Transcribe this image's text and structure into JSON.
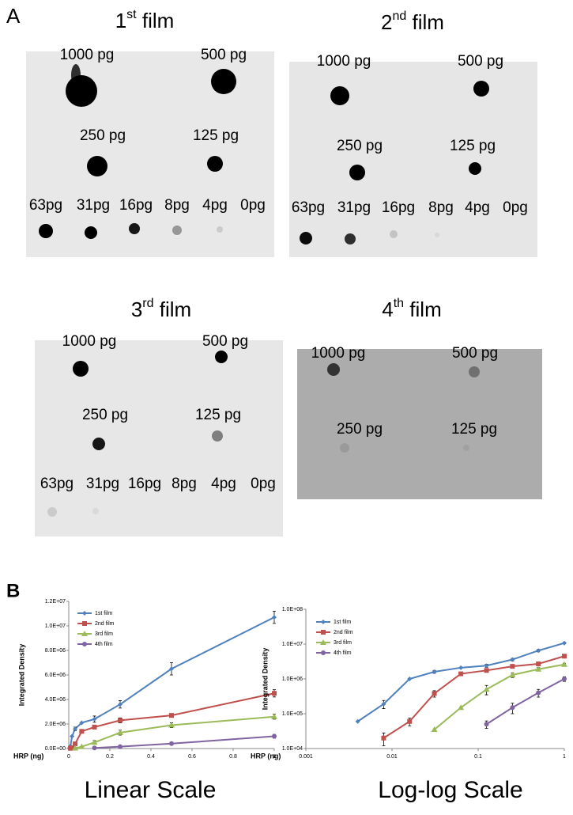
{
  "panel_a": "A",
  "panel_b": "B",
  "films": [
    {
      "ordinal": "1",
      "suffix": "st",
      "word": "film",
      "doses": [
        "1000 pg",
        "500 pg",
        "250 pg",
        "125 pg"
      ],
      "row": [
        "63pg",
        "31pg",
        "16pg",
        "8pg",
        "4pg",
        "0pg"
      ]
    },
    {
      "ordinal": "2",
      "suffix": "nd",
      "word": "film",
      "doses": [
        "1000 pg",
        "500 pg",
        "250 pg",
        "125 pg"
      ],
      "row": [
        "63pg",
        "31pg",
        "16pg",
        "8pg",
        "4pg",
        "0pg"
      ]
    },
    {
      "ordinal": "3",
      "suffix": "rd",
      "word": "film",
      "doses": [
        "1000 pg",
        "500 pg",
        "250 pg",
        "125 pg"
      ],
      "row": [
        "63pg",
        "31pg",
        "16pg",
        "8pg",
        "4pg",
        "0pg"
      ]
    },
    {
      "ordinal": "4",
      "suffix": "th",
      "word": "film",
      "doses": [
        "1000 pg",
        "500 pg",
        "250 pg",
        "125 pg"
      ]
    }
  ],
  "chart_data": [
    {
      "type": "line",
      "caption": "Linear Scale",
      "x_label": "HRP (ng)",
      "y_label": "Integrated Density",
      "legend": "upper left",
      "xlim": [
        0,
        1
      ],
      "xticks": [
        0,
        0.2,
        0.4,
        0.6,
        0.8,
        1
      ],
      "ylim": [
        0,
        12000000
      ],
      "yticks": [
        {
          "value": 0,
          "label": "0.0E+00"
        },
        {
          "value": 2000000,
          "label": "2.0E+06"
        },
        {
          "value": 4000000,
          "label": "4.0E+06"
        },
        {
          "value": 6000000,
          "label": "6.0E+06"
        },
        {
          "value": 8000000,
          "label": "8.0E+06"
        },
        {
          "value": 10000000,
          "label": "1.0E+07"
        },
        {
          "value": 12000000,
          "label": "1.2E+07"
        }
      ],
      "series": [
        {
          "name": "1st film",
          "color": "#4f81bd",
          "marker": "diamond",
          "x": [
            0.004,
            0.008,
            0.016,
            0.031,
            0.063,
            0.125,
            0.25,
            0.5,
            1
          ],
          "values": [
            60000,
            190000,
            1000000,
            1600000,
            2100000,
            2400000,
            3600000,
            6500000,
            10700000
          ],
          "errors": [
            0,
            50000,
            0,
            150000,
            0,
            250000,
            300000,
            500000,
            500000
          ]
        },
        {
          "name": "2nd film",
          "color": "#c0504d",
          "marker": "square",
          "x": [
            0.008,
            0.016,
            0.031,
            0.063,
            0.125,
            0.25,
            0.5,
            1
          ],
          "values": [
            20000,
            60000,
            380000,
            1400000,
            1750000,
            2300000,
            2700000,
            4500000
          ],
          "errors": [
            8000,
            15000,
            80000,
            0,
            150000,
            200000,
            0,
            300000
          ]
        },
        {
          "name": "3rd film",
          "color": "#9bbb59",
          "marker": "triangle",
          "x": [
            0.031,
            0.063,
            0.125,
            0.25,
            0.5,
            1
          ],
          "values": [
            35000,
            150000,
            500000,
            1300000,
            1900000,
            2600000
          ],
          "errors": [
            0,
            0,
            150000,
            200000,
            200000,
            200000
          ]
        },
        {
          "name": "4th film",
          "color": "#8064a2",
          "marker": "circle",
          "x": [
            0.125,
            0.25,
            0.5,
            1
          ],
          "values": [
            50000,
            150000,
            400000,
            1000000
          ],
          "errors": [
            12000,
            50000,
            100000,
            150000
          ]
        }
      ]
    },
    {
      "type": "line",
      "caption": "Log-log Scale",
      "x_label": "HRP (ng)",
      "y_label": "Integrated Density",
      "legend": "upper left",
      "log": true,
      "xlim": [
        0.001,
        1
      ],
      "xticks": [
        0.001,
        0.01,
        0.1,
        1
      ],
      "ylim": [
        10000,
        100000000
      ],
      "yticks": [
        {
          "value": 10000,
          "label": "1.0E+04"
        },
        {
          "value": 100000,
          "label": "1.0E+05"
        },
        {
          "value": 1000000,
          "label": "1.0E+06"
        },
        {
          "value": 10000000,
          "label": "1.0E+07"
        },
        {
          "value": 100000000,
          "label": "1.0E+08"
        }
      ],
      "series": [
        {
          "name": "1st film",
          "color": "#4f81bd",
          "marker": "diamond",
          "x": [
            0.004,
            0.008,
            0.016,
            0.031,
            0.063,
            0.125,
            0.25,
            0.5,
            1
          ],
          "values": [
            60000,
            190000,
            1000000,
            1600000,
            2100000,
            2400000,
            3600000,
            6500000,
            10700000
          ],
          "errors": [
            0,
            50000,
            0,
            150000,
            0,
            250000,
            300000,
            500000,
            500000
          ]
        },
        {
          "name": "2nd film",
          "color": "#c0504d",
          "marker": "square",
          "x": [
            0.008,
            0.016,
            0.031,
            0.063,
            0.125,
            0.25,
            0.5,
            1
          ],
          "values": [
            20000,
            60000,
            380000,
            1400000,
            1750000,
            2300000,
            2700000,
            4500000
          ],
          "errors": [
            8000,
            15000,
            80000,
            0,
            150000,
            200000,
            0,
            300000
          ]
        },
        {
          "name": "3rd film",
          "color": "#9bbb59",
          "marker": "triangle",
          "x": [
            0.031,
            0.063,
            0.125,
            0.25,
            0.5,
            1
          ],
          "values": [
            35000,
            150000,
            500000,
            1300000,
            1900000,
            2600000
          ],
          "errors": [
            0,
            0,
            150000,
            200000,
            200000,
            200000
          ]
        },
        {
          "name": "4th film",
          "color": "#8064a2",
          "marker": "circle",
          "x": [
            0.125,
            0.25,
            0.5,
            1
          ],
          "values": [
            50000,
            150000,
            400000,
            1000000
          ],
          "errors": [
            12000,
            50000,
            100000,
            150000
          ]
        }
      ]
    }
  ]
}
